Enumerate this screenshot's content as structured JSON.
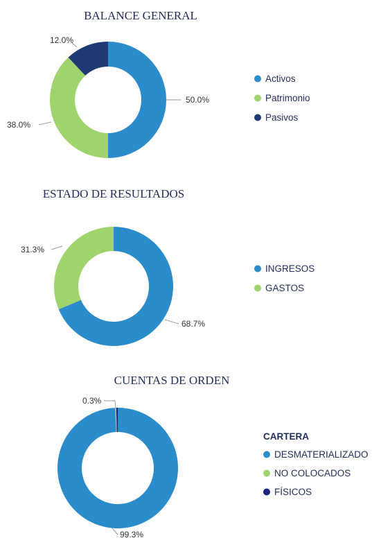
{
  "chart_data": [
    {
      "type": "pie",
      "title": "BALANCE GENERAL",
      "categories": [
        "Activos",
        "Patrimonio",
        "Pasivos"
      ],
      "values": [
        50.0,
        38.0,
        12.0
      ],
      "value_labels": [
        "50.0%",
        "38.0%",
        "12.0%"
      ],
      "colors": [
        "#2a8ccb",
        "#9fd36b",
        "#1f3a73"
      ],
      "legend_title": "",
      "legend": "right"
    },
    {
      "type": "pie",
      "title": "ESTADO DE RESULTADOS",
      "categories": [
        "INGRESOS",
        "GASTOS"
      ],
      "values": [
        68.7,
        31.3
      ],
      "value_labels": [
        "68.7%",
        "31.3%"
      ],
      "colors": [
        "#2a8ccb",
        "#9fd36b"
      ],
      "legend_title": "",
      "legend": "right"
    },
    {
      "type": "pie",
      "title": "CUENTAS DE ORDEN",
      "categories": [
        "DESMATERIALIZADO",
        "NO COLOCADOS",
        "FÍSICOS"
      ],
      "values": [
        99.3,
        0.3,
        0.4
      ],
      "value_labels": [
        "99.3%",
        "0.3%",
        ""
      ],
      "colors": [
        "#2a8ccb",
        "#9fd36b",
        "#1a237e"
      ],
      "legend_title": "CARTERA",
      "legend": "right"
    }
  ]
}
